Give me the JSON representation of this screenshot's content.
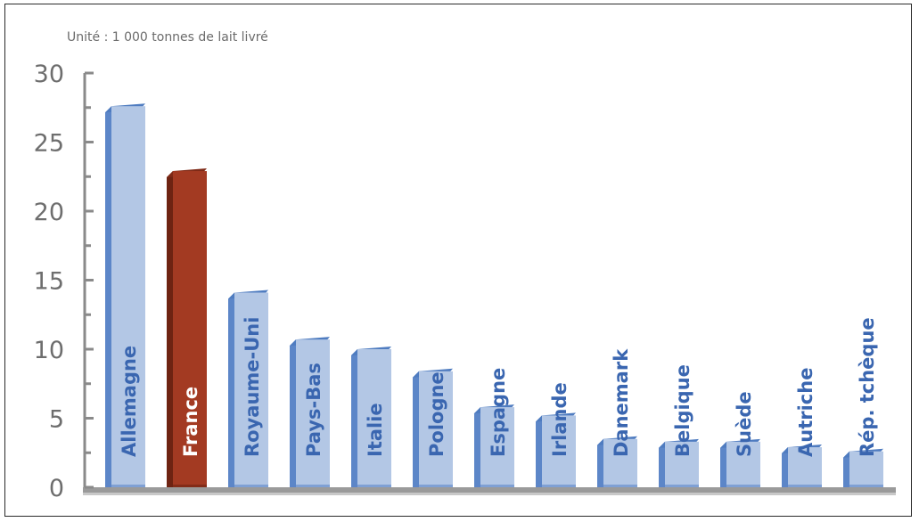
{
  "unit_note": "Unité : 1 000 tonnes de lait livré",
  "colors": {
    "bar_front": "#b3c7e5",
    "bar_side": "#5c86c8",
    "bar_top": "#4f7cc0",
    "bar_label": "#3a66b0",
    "highlight_front": "#a33a22",
    "highlight_side": "#6e2312",
    "highlight_top": "#7f2a17",
    "highlight_label": "#ffffff",
    "axis": "#8a8a8a",
    "tick_text": "#6e6e6e"
  },
  "chart_data": {
    "type": "bar",
    "title": "",
    "subtitle": "Unité : 1 000 tonnes de lait livré",
    "xlabel": "",
    "ylabel": "",
    "ylim": [
      0,
      30
    ],
    "yticks": [
      0,
      5,
      10,
      15,
      20,
      25,
      30
    ],
    "grid": false,
    "legend": "none",
    "categories": [
      "Allemagne",
      "France",
      "Royaume-Uni",
      "Pays-Bas",
      "Italie",
      "Pologne",
      "Espagne",
      "Irlande",
      "Danemark",
      "Belgique",
      "Suède",
      "Autriche",
      "Rép. tchèque"
    ],
    "values": [
      27.6,
      22.9,
      14.1,
      10.7,
      10.0,
      8.4,
      5.8,
      5.2,
      3.5,
      3.3,
      3.3,
      2.9,
      2.6
    ],
    "highlight": "France"
  }
}
